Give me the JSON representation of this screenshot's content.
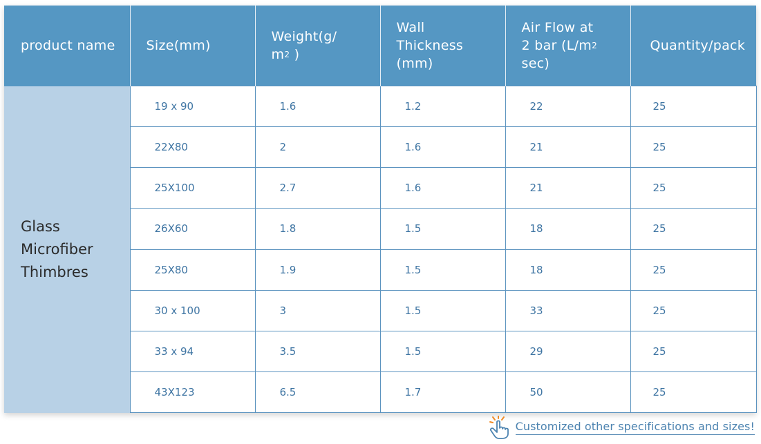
{
  "headers": [
    "product name",
    "Size(mm)",
    [
      "Weight(g/",
      "m",
      "2",
      " )"
    ],
    [
      "Wall",
      "Thickness",
      "(mm)"
    ],
    [
      "Air Flow at",
      "2 bar (L/m",
      "2",
      "sec)"
    ],
    "Quantity/pack"
  ],
  "product_name_lines": [
    "Glass",
    "Microfiber",
    "Thimbres"
  ],
  "rows": [
    {
      "size": "19 x 90",
      "weight": "1.6",
      "wall": "1.2",
      "airflow": "22",
      "qty": "25"
    },
    {
      "size": "22X80",
      "weight": "2",
      "wall": "1.6",
      "airflow": "21",
      "qty": "25"
    },
    {
      "size": "25X100",
      "weight": "2.7",
      "wall": "1.6",
      "airflow": "21",
      "qty": "25"
    },
    {
      "size": "26X60",
      "weight": "1.8",
      "wall": "1.5",
      "airflow": "18",
      "qty": "25"
    },
    {
      "size": "25X80",
      "weight": "1.9",
      "wall": "1.5",
      "airflow": "18",
      "qty": "25"
    },
    {
      "size": "30 x 100",
      "weight": "3",
      "wall": "1.5",
      "airflow": "33",
      "qty": "25"
    },
    {
      "size": "33 x 94",
      "weight": "3.5",
      "wall": "1.5",
      "airflow": "29",
      "qty": "25"
    },
    {
      "size": "43X123",
      "weight": "6.5",
      "wall": "1.7",
      "airflow": "50",
      "qty": "25"
    }
  ],
  "footer": {
    "text": "Customized other specifications and sizes!",
    "icon": "pointing-hand-icon"
  },
  "colors": {
    "header_bg": "#5597c3",
    "product_cell_bg": "#b8d1e6",
    "cell_text": "#3f75a3",
    "border": "#5b93bf",
    "accent_orange": "#f08a24"
  }
}
